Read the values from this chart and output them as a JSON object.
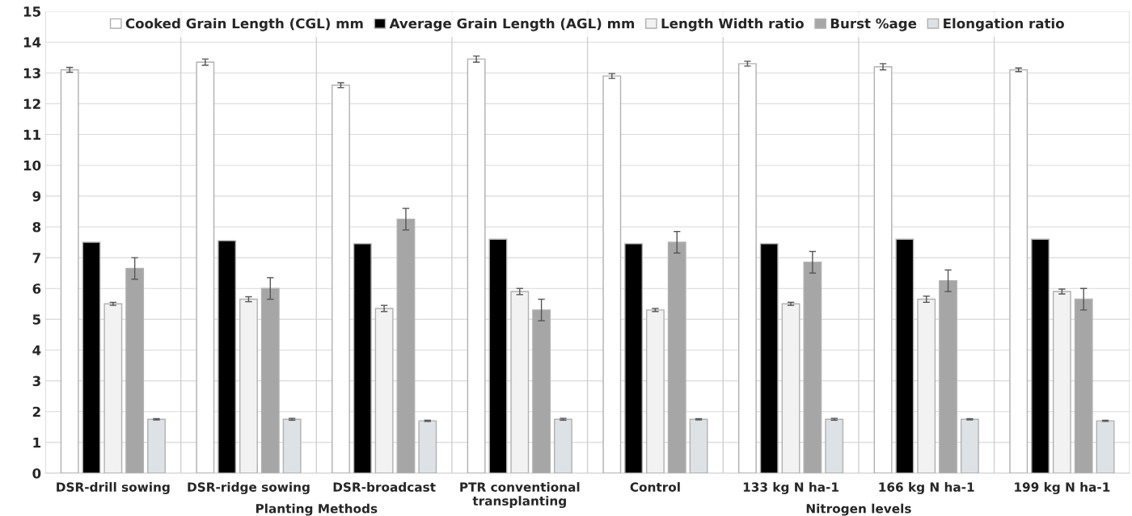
{
  "chart_data": {
    "type": "bar",
    "categories": [
      "DSR-drill sowing",
      "DSR-ridge sowing",
      "DSR-broadcast",
      "PTR conventional transplanting",
      "Control",
      "133 kg N ha-1",
      "166 kg N ha-1",
      "199 kg N ha-1"
    ],
    "series": [
      {
        "name": "Cooked Grain Length (CGL) mm",
        "color": "#ffffff",
        "values": [
          13.1,
          13.35,
          12.6,
          13.45,
          12.9,
          13.3,
          13.2,
          13.1
        ],
        "errors": [
          0.08,
          0.1,
          0.08,
          0.1,
          0.08,
          0.08,
          0.1,
          0.06
        ]
      },
      {
        "name": "Average Grain Length (AGL) mm",
        "color": "#000000",
        "values": [
          7.5,
          7.55,
          7.45,
          7.6,
          7.45,
          7.45,
          7.6,
          7.6
        ]
      },
      {
        "name": "Length Width ratio",
        "color": "#f2f2f2",
        "values": [
          5.5,
          5.65,
          5.35,
          5.9,
          5.3,
          5.5,
          5.65,
          5.9
        ],
        "errors": [
          0.05,
          0.08,
          0.1,
          0.1,
          0.05,
          0.05,
          0.1,
          0.08
        ]
      },
      {
        "name": "Burst %age",
        "color": "#a6a6a6",
        "values": [
          6.65,
          6.0,
          8.25,
          5.3,
          7.5,
          6.85,
          6.25,
          5.65
        ],
        "errors": [
          0.35,
          0.35,
          0.35,
          0.35,
          0.35,
          0.35,
          0.35,
          0.35
        ]
      },
      {
        "name": "Elongation ratio",
        "color": "#dde2e6",
        "values": [
          1.75,
          1.75,
          1.7,
          1.75,
          1.75,
          1.75,
          1.75,
          1.7
        ],
        "errors": [
          0.02,
          0.03,
          0.02,
          0.03,
          0.02,
          0.03,
          0.02,
          0.02
        ]
      }
    ],
    "ylim": [
      0,
      15
    ],
    "yticks": [
      0,
      1,
      2,
      3,
      4,
      5,
      6,
      7,
      8,
      9,
      10,
      11,
      12,
      13,
      14,
      15
    ],
    "grid": "y",
    "legend": "top",
    "annotations": [
      "Planting Methods",
      "Nitrogen levels"
    ]
  }
}
